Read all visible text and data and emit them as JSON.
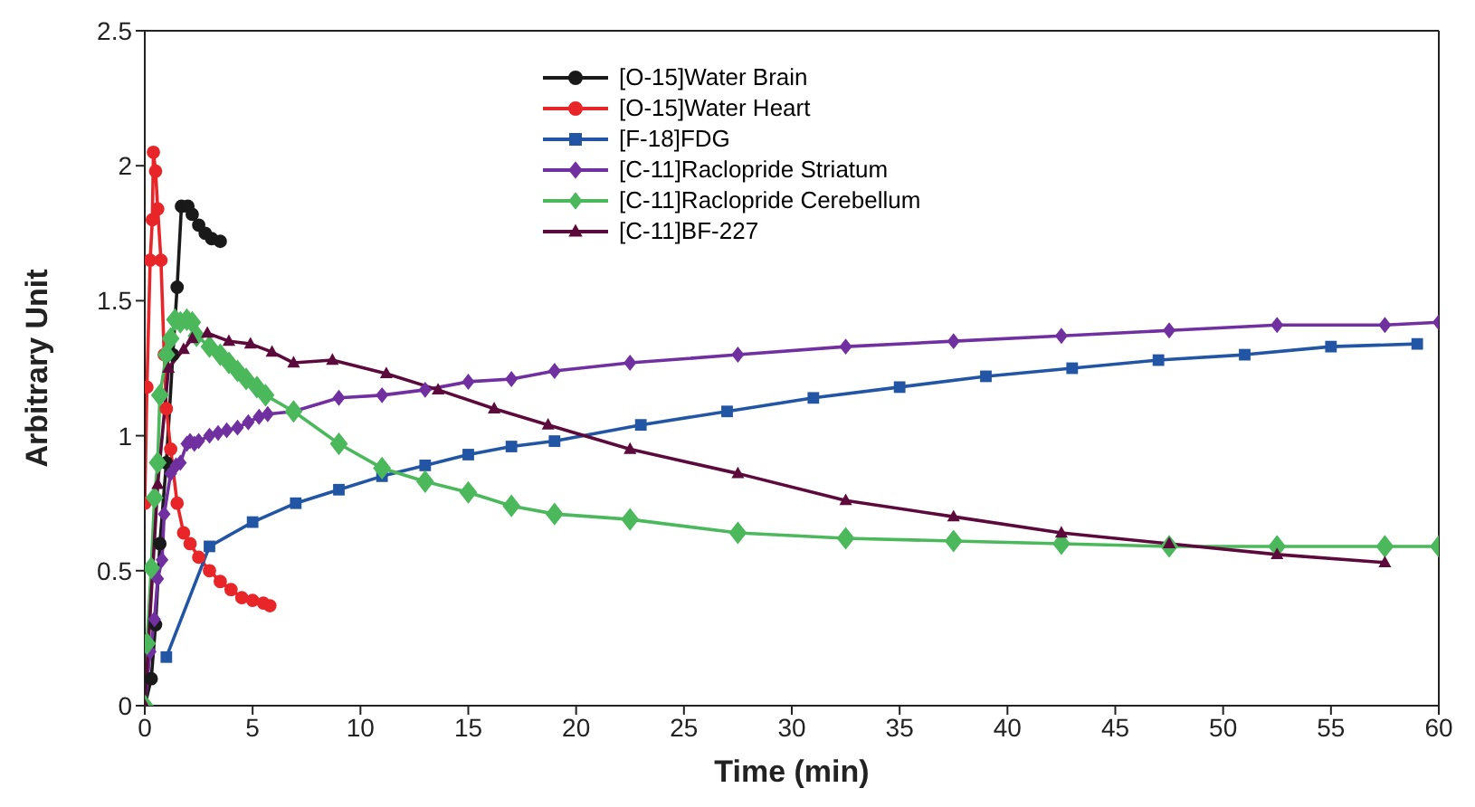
{
  "chart_data": {
    "type": "line",
    "xlabel": "Time (min)",
    "ylabel": "Arbitrary Unit",
    "xlim": [
      0,
      60
    ],
    "xticks": [
      0,
      5,
      10,
      15,
      20,
      25,
      30,
      35,
      40,
      45,
      50,
      55,
      60
    ],
    "ylim": [
      0,
      2.5
    ],
    "yticks": [
      0,
      0.5,
      1,
      1.5,
      2,
      2.5
    ],
    "grid": false,
    "legend": "top",
    "line_style": "solid",
    "series": [
      {
        "name": "[O-15]Water Brain",
        "color": "#1a1a1a",
        "marker": "circle",
        "x": [
          0,
          0.3,
          0.5,
          0.7,
          1,
          1.3,
          1.5,
          1.7,
          2,
          2.2,
          2.5,
          2.8,
          3.1,
          3.5
        ],
        "values": [
          0,
          0.1,
          0.3,
          0.6,
          0.9,
          1.3,
          1.55,
          1.85,
          1.85,
          1.82,
          1.78,
          1.75,
          1.73,
          1.72
        ]
      },
      {
        "name": "[O-15]Water Heart",
        "color": "#e8262a",
        "marker": "circle",
        "x": [
          0,
          0.1,
          0.25,
          0.35,
          0.4,
          0.5,
          0.6,
          0.75,
          0.9,
          1,
          1.2,
          1.5,
          1.8,
          2.1,
          2.5,
          3,
          3.5,
          4,
          4.5,
          5,
          5.5,
          5.8
        ],
        "values": [
          0.75,
          1.18,
          1.65,
          1.8,
          2.05,
          1.98,
          1.84,
          1.65,
          1.3,
          1.1,
          0.95,
          0.75,
          0.64,
          0.6,
          0.55,
          0.5,
          0.46,
          0.43,
          0.4,
          0.39,
          0.38,
          0.37
        ]
      },
      {
        "name": "[F-18]FDG",
        "color": "#2255a4",
        "marker": "square",
        "x": [
          1,
          3,
          5,
          7,
          9,
          11,
          13,
          15,
          17,
          19,
          23,
          27,
          31,
          35,
          39,
          43,
          47,
          51,
          55,
          59
        ],
        "values": [
          0.18,
          0.59,
          0.68,
          0.75,
          0.8,
          0.85,
          0.89,
          0.93,
          0.96,
          0.98,
          1.04,
          1.09,
          1.14,
          1.18,
          1.22,
          1.25,
          1.28,
          1.3,
          1.33,
          1.34
        ]
      },
      {
        "name": "[C-11]Raclopride Striatum",
        "color": "#7030a0",
        "marker": "diamond",
        "x": [
          0,
          0.25,
          0.45,
          0.6,
          0.8,
          0.9,
          1.2,
          1.45,
          1.65,
          1.95,
          2.1,
          2.3,
          2.5,
          3,
          3.4,
          3.8,
          4.3,
          4.8,
          5.3,
          5.7,
          6.9,
          9,
          11,
          13,
          15,
          17,
          19,
          22.5,
          27.5,
          32.5,
          37.5,
          42.5,
          47.5,
          52.5,
          57.5,
          60
        ],
        "values": [
          0,
          0.2,
          0.32,
          0.47,
          0.54,
          0.71,
          0.86,
          0.89,
          0.9,
          0.97,
          0.98,
          0.97,
          0.98,
          1,
          1.01,
          1.02,
          1.03,
          1.05,
          1.07,
          1.08,
          1.09,
          1.14,
          1.15,
          1.17,
          1.2,
          1.21,
          1.24,
          1.27,
          1.3,
          1.33,
          1.35,
          1.37,
          1.39,
          1.41,
          1.41,
          1.42
        ]
      },
      {
        "name": "[C-11]Raclopride Cerebellum",
        "color": "#4cb85c",
        "marker": "diamond",
        "x": [
          0,
          0.1,
          0.3,
          0.45,
          0.6,
          0.7,
          1,
          1.2,
          1.4,
          1.65,
          1.95,
          2.2,
          2.4,
          3,
          3.5,
          3.9,
          4.3,
          4.7,
          5.2,
          5.6,
          6.9,
          9,
          11,
          13,
          15,
          17,
          19,
          22.5,
          27.5,
          32.5,
          37.5,
          42.5,
          47.5,
          52.5,
          57.5,
          60
        ],
        "values": [
          0,
          0.23,
          0.51,
          0.77,
          0.9,
          1.15,
          1.3,
          1.36,
          1.43,
          1.42,
          1.43,
          1.42,
          1.37,
          1.33,
          1.3,
          1.27,
          1.24,
          1.21,
          1.18,
          1.15,
          1.09,
          0.97,
          0.88,
          0.83,
          0.79,
          0.74,
          0.71,
          0.69,
          0.64,
          0.62,
          0.61,
          0.6,
          0.59,
          0.59,
          0.59,
          0.59
        ]
      },
      {
        "name": "[C-11]BF-227",
        "color": "#5c0a3c",
        "marker": "triangle",
        "x": [
          0,
          0.6,
          1.1,
          1.8,
          2.2,
          2.9,
          3.9,
          4.9,
          5.9,
          6.9,
          8.7,
          11.2,
          13.6,
          16.2,
          18.7,
          22.5,
          27.5,
          32.5,
          37.5,
          42.5,
          47.5,
          52.5,
          57.5
        ],
        "values": [
          0,
          0.82,
          1.25,
          1.32,
          1.36,
          1.38,
          1.35,
          1.34,
          1.31,
          1.27,
          1.28,
          1.23,
          1.17,
          1.1,
          1.04,
          0.95,
          0.86,
          0.76,
          0.7,
          0.64,
          0.6,
          0.56,
          0.53
        ]
      }
    ]
  }
}
